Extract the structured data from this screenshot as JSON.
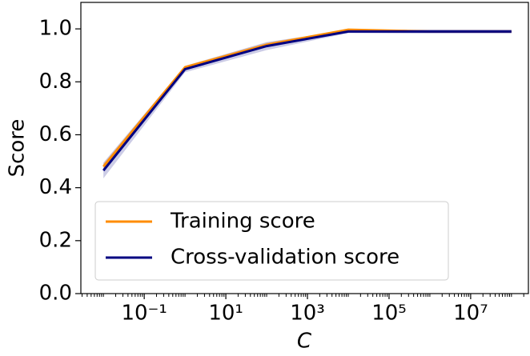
{
  "chart_data": {
    "type": "line",
    "x_label": "C",
    "y_label": "Score",
    "x": [
      0.01,
      1,
      100,
      10000,
      1000000,
      100000000
    ],
    "series": [
      {
        "name": "Training score",
        "color": "#ff8c00",
        "values": [
          0.48,
          0.855,
          0.94,
          0.997,
          0.99,
          0.99
        ],
        "std": [
          0.012,
          0.006,
          0.008,
          0.002,
          0.004,
          0.004
        ]
      },
      {
        "name": "Cross-validation score",
        "color": "#000080",
        "values": [
          0.465,
          0.848,
          0.935,
          0.99,
          0.99,
          0.99
        ],
        "std": [
          0.03,
          0.012,
          0.015,
          0.006,
          0.008,
          0.008
        ]
      }
    ],
    "log_x": true,
    "xlim": [
      0.0028,
      260000000
    ],
    "xticks": [
      {
        "value": 0.1,
        "label": "10⁻¹"
      },
      {
        "value": 10,
        "label": "10¹"
      },
      {
        "value": 1000,
        "label": "10³"
      },
      {
        "value": 100000,
        "label": "10⁵"
      },
      {
        "value": 10000000,
        "label": "10⁷"
      }
    ],
    "ylim": [
      0,
      1.1
    ],
    "yticks": [
      {
        "value": 0,
        "label": "0.0"
      },
      {
        "value": 0.2,
        "label": "0.2"
      },
      {
        "value": 0.4,
        "label": "0.4"
      },
      {
        "value": 0.6,
        "label": "0.6"
      },
      {
        "value": 0.8,
        "label": "0.8"
      },
      {
        "value": 1.0,
        "label": "1.0"
      }
    ],
    "legend": "lower left",
    "grid": false
  }
}
